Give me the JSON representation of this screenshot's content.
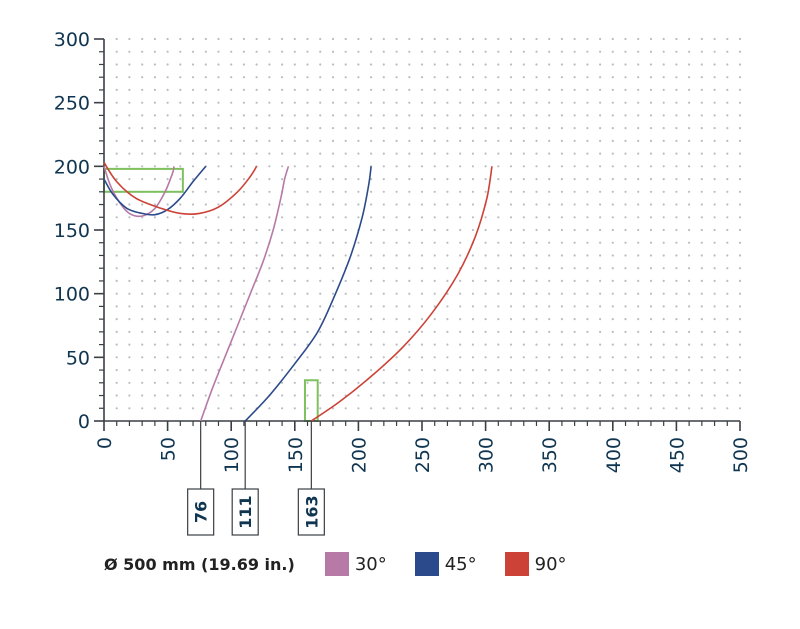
{
  "legend": {
    "title": "Ø 500 mm (19.69 in.)",
    "items": [
      {
        "label": "30°",
        "color": "#b77aa7"
      },
      {
        "label": "45°",
        "color": "#2b4a8b"
      },
      {
        "label": "90°",
        "color": "#cc4237"
      }
    ]
  },
  "chart_data": {
    "type": "line",
    "title": "",
    "xlabel": "",
    "ylabel": "",
    "xlim": [
      0,
      500
    ],
    "ylim": [
      0,
      300
    ],
    "x_ticks": [
      "0",
      "50",
      "100",
      "150",
      "200",
      "250",
      "300",
      "350",
      "400",
      "450",
      "500"
    ],
    "y_ticks": [
      "0",
      "50",
      "100",
      "150",
      "200",
      "250",
      "300"
    ],
    "grid": "dotted",
    "series": [
      {
        "name": "30°",
        "color": "#b77aa7",
        "curves": [
          [
            [
              0,
              200
            ],
            [
              5,
              185
            ],
            [
              12,
              172
            ],
            [
              20,
              163
            ],
            [
              30,
              161
            ],
            [
              40,
              167
            ],
            [
              48,
              180
            ],
            [
              54,
              195
            ],
            [
              55,
              200
            ]
          ],
          [
            [
              76,
              0
            ],
            [
              85,
              25
            ],
            [
              95,
              50
            ],
            [
              105,
              75
            ],
            [
              115,
              100
            ],
            [
              125,
              125
            ],
            [
              133,
              150
            ],
            [
              139,
              175
            ],
            [
              142,
              190
            ],
            [
              145,
              200
            ]
          ]
        ]
      },
      {
        "name": "45°",
        "color": "#2b4a8b",
        "curves": [
          [
            [
              0,
              190
            ],
            [
              7,
              178
            ],
            [
              18,
              167
            ],
            [
              30,
              163
            ],
            [
              40,
              162
            ],
            [
              50,
              166
            ],
            [
              60,
              175
            ],
            [
              70,
              188
            ],
            [
              80,
              200
            ]
          ],
          [
            [
              111,
              0
            ],
            [
              130,
              20
            ],
            [
              150,
              45
            ],
            [
              168,
              70
            ],
            [
              182,
              100
            ],
            [
              194,
              130
            ],
            [
              203,
              160
            ],
            [
              208,
              185
            ],
            [
              210,
              200
            ]
          ]
        ]
      },
      {
        "name": "90°",
        "color": "#cc4237",
        "curves": [
          [
            [
              0,
              203
            ],
            [
              10,
              188
            ],
            [
              25,
              175
            ],
            [
              45,
              167
            ],
            [
              60,
              163
            ],
            [
              75,
              163
            ],
            [
              90,
              168
            ],
            [
              105,
              180
            ],
            [
              115,
              192
            ],
            [
              120,
              200
            ]
          ],
          [
            [
              163,
              0
            ],
            [
              185,
              15
            ],
            [
              210,
              35
            ],
            [
              235,
              58
            ],
            [
              258,
              85
            ],
            [
              278,
              115
            ],
            [
              292,
              145
            ],
            [
              301,
              175
            ],
            [
              305,
              200
            ]
          ]
        ]
      }
    ],
    "highlight_boxes": [
      {
        "x0": 0,
        "x1": 62,
        "y0": 180,
        "y1": 198,
        "color": "#7ec05e"
      },
      {
        "x0": 158,
        "x1": 168,
        "y0": 0,
        "y1": 32,
        "color": "#7ec05e"
      }
    ],
    "marked_x": [
      {
        "value": 76,
        "label": "76"
      },
      {
        "value": 111,
        "label": "111"
      },
      {
        "value": 163,
        "label": "163"
      }
    ]
  }
}
